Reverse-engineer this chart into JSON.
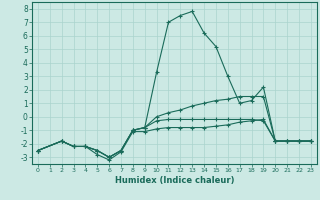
{
  "xlabel": "Humidex (Indice chaleur)",
  "ylabel": "",
  "xlim": [
    -0.5,
    23.5
  ],
  "ylim": [
    -3.5,
    8.5
  ],
  "xticks": [
    0,
    1,
    2,
    3,
    4,
    5,
    6,
    7,
    8,
    9,
    10,
    11,
    12,
    13,
    14,
    15,
    16,
    17,
    18,
    19,
    20,
    21,
    22,
    23
  ],
  "yticks": [
    -3,
    -2,
    -1,
    0,
    1,
    2,
    3,
    4,
    5,
    6,
    7,
    8
  ],
  "bg_color": "#cce9e4",
  "grid_color": "#aad4ce",
  "line_color": "#1a6b5a",
  "line1_x": [
    0,
    2,
    3,
    4,
    5,
    6,
    7,
    8,
    9,
    10,
    11,
    12,
    13,
    14,
    15,
    16,
    17,
    18,
    19,
    20,
    21,
    22,
    23
  ],
  "line1_y": [
    -2.5,
    -1.8,
    -2.2,
    -2.2,
    -2.5,
    -3.0,
    -2.5,
    -1.0,
    -0.8,
    -0.3,
    -0.2,
    -0.2,
    -0.2,
    -0.2,
    -0.2,
    -0.2,
    -0.2,
    -0.2,
    -0.3,
    -1.8,
    -1.8,
    -1.8,
    -1.8
  ],
  "line2_x": [
    0,
    2,
    3,
    4,
    5,
    6,
    7,
    8,
    9,
    10,
    11,
    12,
    13,
    14,
    15,
    16,
    17,
    18,
    19,
    20,
    21,
    22,
    23
  ],
  "line2_y": [
    -2.5,
    -1.8,
    -2.2,
    -2.2,
    -2.5,
    -3.0,
    -2.5,
    -1.0,
    -0.8,
    0.0,
    0.3,
    0.5,
    0.8,
    1.0,
    1.2,
    1.3,
    1.5,
    1.5,
    1.5,
    -1.8,
    -1.8,
    -1.8,
    -1.8
  ],
  "line3_x": [
    0,
    2,
    3,
    4,
    5,
    6,
    7,
    8,
    9,
    10,
    11,
    12,
    13,
    14,
    15,
    16,
    17,
    18,
    19,
    20,
    21,
    22,
    23
  ],
  "line3_y": [
    -2.5,
    -1.8,
    -2.2,
    -2.2,
    -2.5,
    -3.0,
    -2.5,
    -1.0,
    -0.8,
    3.3,
    7.0,
    7.5,
    7.8,
    6.2,
    5.2,
    3.0,
    1.0,
    1.2,
    2.2,
    -1.8,
    -1.8,
    -1.8,
    -1.8
  ],
  "line4_x": [
    0,
    2,
    3,
    4,
    5,
    6,
    7,
    8,
    9,
    10,
    11,
    12,
    13,
    14,
    15,
    16,
    17,
    18,
    19,
    20,
    21,
    22,
    23
  ],
  "line4_y": [
    -2.5,
    -1.8,
    -2.2,
    -2.2,
    -2.8,
    -3.2,
    -2.6,
    -1.1,
    -1.1,
    -0.9,
    -0.8,
    -0.8,
    -0.8,
    -0.8,
    -0.7,
    -0.6,
    -0.4,
    -0.3,
    -0.2,
    -1.8,
    -1.8,
    -1.8,
    -1.8
  ]
}
